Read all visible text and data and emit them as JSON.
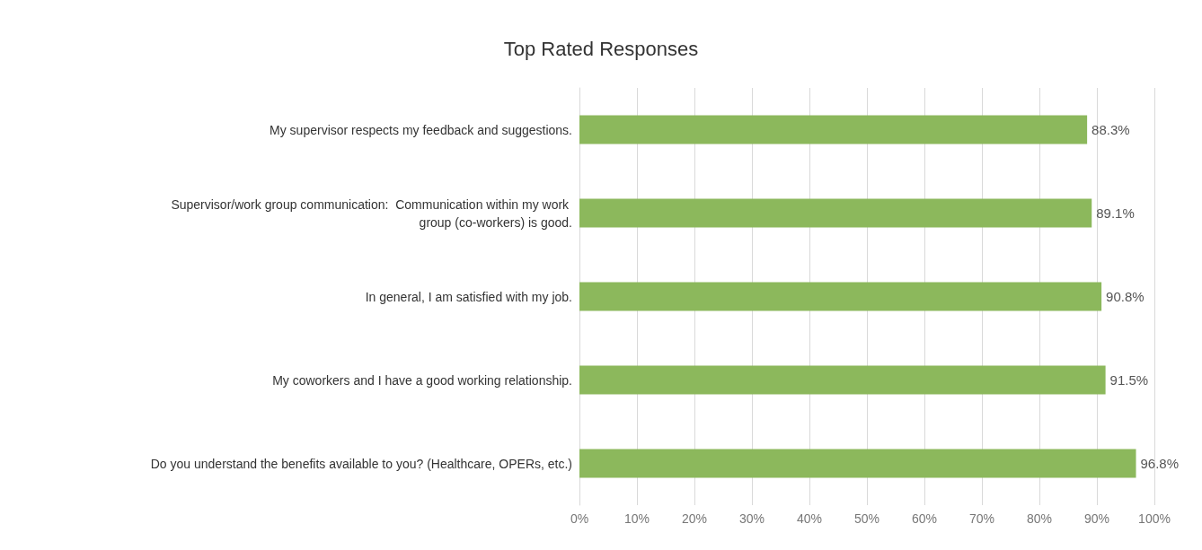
{
  "chart_data": {
    "type": "bar",
    "orientation": "horizontal",
    "title": "Top Rated Responses",
    "categories": [
      "My supervisor respects my feedback and suggestions.",
      "Supervisor/work group communication:  Communication within my work group (co-workers) is good.",
      "In general, I am satisfied with my job.",
      "My coworkers and I have a good working relationship.",
      "Do you understand the benefits available to you? (Healthcare, OPERs, etc.)"
    ],
    "values": [
      88.3,
      89.1,
      90.8,
      91.5,
      96.8
    ],
    "value_labels": [
      "88.3%",
      "89.1%",
      "90.8%",
      "91.5%",
      "96.8%"
    ],
    "color": "#8cb85c",
    "xlim": [
      0,
      100
    ],
    "xticks": [
      {
        "value": 0,
        "label": "0%"
      },
      {
        "value": 10,
        "label": "10%"
      },
      {
        "value": 20,
        "label": "20%"
      },
      {
        "value": 30,
        "label": "30%"
      },
      {
        "value": 40,
        "label": "40%"
      },
      {
        "value": 50,
        "label": "50%"
      },
      {
        "value": 60,
        "label": "60%"
      },
      {
        "value": 70,
        "label": "70%"
      },
      {
        "value": 80,
        "label": "80%"
      },
      {
        "value": 90,
        "label": "90%"
      },
      {
        "value": 100,
        "label": "100%"
      }
    ],
    "grid": "x"
  }
}
